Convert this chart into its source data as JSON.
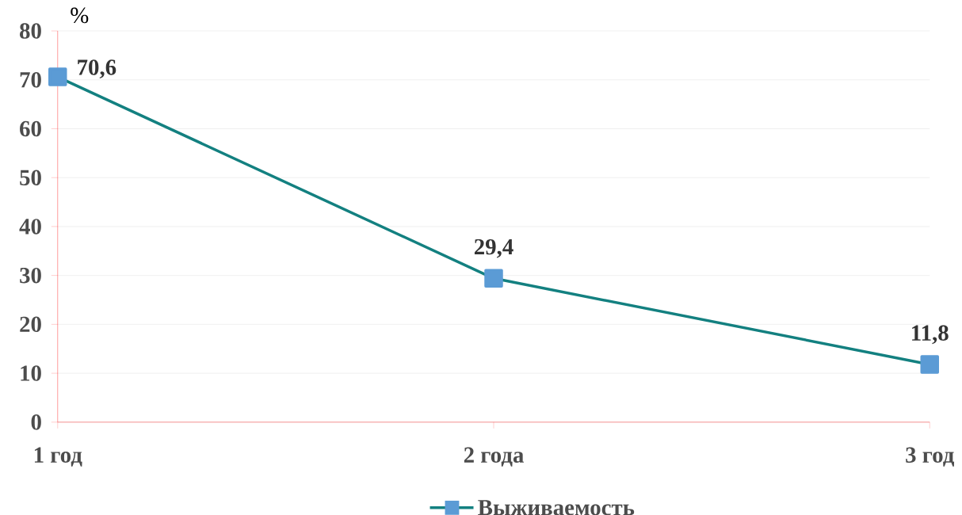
{
  "chart_data": {
    "type": "line",
    "ylabel": "%",
    "categories": [
      "1 год",
      "2 года",
      "3 год"
    ],
    "series": [
      {
        "name": "Выживаемость",
        "color": "#138080",
        "values": [
          70.6,
          29.4,
          11.8
        ],
        "value_labels": [
          "70,6",
          "29,4",
          "11,8"
        ]
      }
    ],
    "marker": "square",
    "ylim": [
      0,
      80
    ],
    "yticks": [
      0,
      10,
      20,
      30,
      40,
      50,
      60,
      70,
      80
    ],
    "grid": "y",
    "legend": "bottom"
  }
}
